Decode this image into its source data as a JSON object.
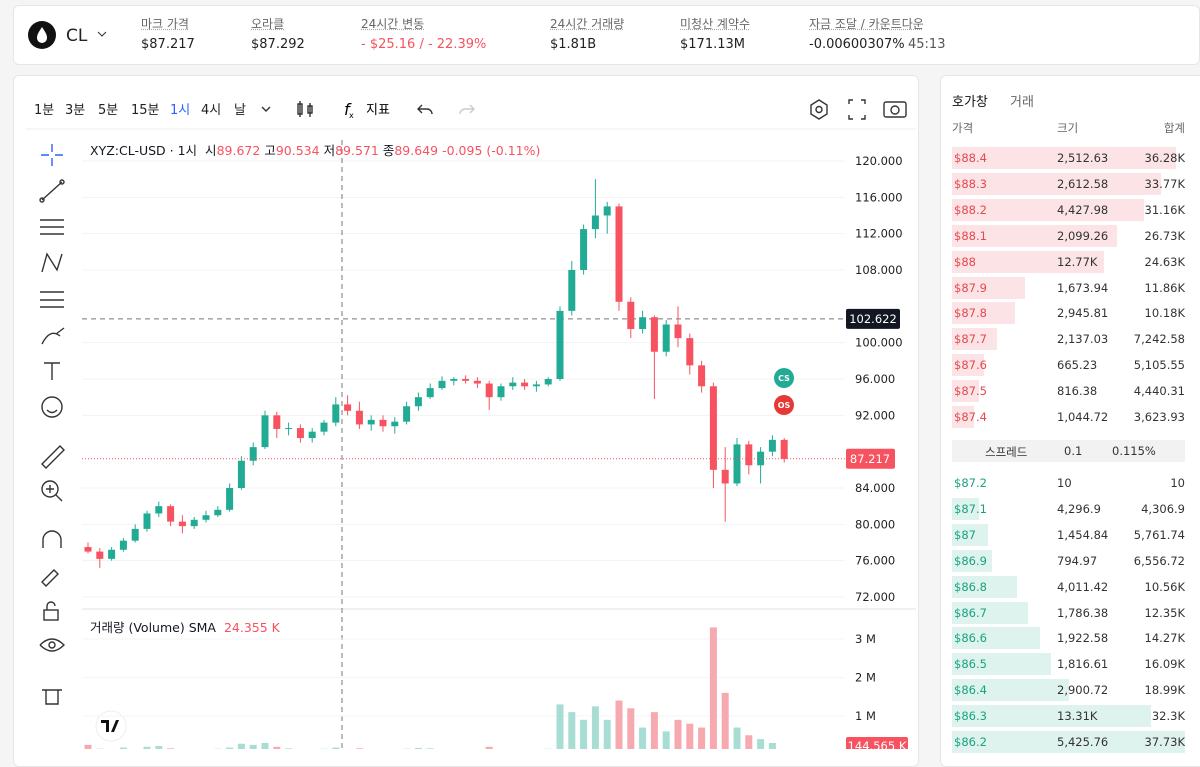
{
  "header": {
    "symbol": "CL",
    "stats": [
      {
        "label": "마크 가격",
        "value": "$87.217"
      },
      {
        "label": "오라클",
        "value": "$87.292"
      },
      {
        "label": "24시간 변동",
        "value": "- $25.16 / - 22.39%"
      },
      {
        "label": "24시간 거래량",
        "value": "$1.81B"
      },
      {
        "label": "미청산 계약수",
        "value": "$171.13M"
      },
      {
        "label": "자금 조달 / 카운트다운",
        "value": "-0.00600307%",
        "extra": "45:13"
      }
    ]
  },
  "toolbar": {
    "intervals": [
      "1분",
      "3분",
      "5분",
      "15분",
      "1시",
      "4시",
      "날"
    ],
    "active_interval": 4,
    "indicators": "지표"
  },
  "chart_data": {
    "type": "candlestick",
    "symbol": "XYZ:CL-USD · 1시",
    "legend": [
      {
        "label": "시",
        "value": "89.672"
      },
      {
        "label": "고",
        "value": "90.534"
      },
      {
        "label": "저",
        "value": "89.571"
      },
      {
        "label": "종",
        "value": "89.649"
      }
    ],
    "change": "-0.095 (-0.11%)",
    "open": [
      77.5,
      77.0,
      76.2,
      77.2,
      78.2,
      79.5,
      81.2,
      82.0,
      80.3,
      79.8,
      80.5,
      81.0,
      81.6,
      84.0,
      87.0,
      88.5,
      92.0,
      90.5,
      90.6,
      89.5,
      90.2,
      91.2,
      93.2,
      92.5,
      91.0,
      91.5,
      90.8,
      91.3,
      93.0,
      94.0,
      95.0,
      95.8,
      96.0,
      95.8,
      95.5,
      94.0,
      95.2,
      95.6,
      95.2,
      95.4,
      96.0,
      103.5,
      108.0,
      112.5,
      114.0,
      115.0,
      104.5,
      101.5,
      102.8,
      99.0,
      102.0,
      100.5,
      97.5,
      95.2,
      86.0,
      84.5,
      88.8,
      86.5,
      88.0,
      89.3
    ],
    "high": [
      78,
      77.4,
      77.5,
      78.5,
      80,
      81.5,
      82.5,
      82.2,
      81,
      80.8,
      81.5,
      82,
      84.5,
      87.5,
      89,
      92.5,
      92.4,
      91.2,
      91,
      90.6,
      91.5,
      94,
      94.2,
      93.5,
      92,
      92,
      91.8,
      93.5,
      94.5,
      95.5,
      96.3,
      96.2,
      96.4,
      96.2,
      95.8,
      95.5,
      96.2,
      96,
      95.8,
      96.2,
      104,
      109,
      113,
      118,
      115.5,
      115.3,
      105,
      103.5,
      103,
      102.5,
      104,
      101,
      98,
      95.6,
      88.5,
      89.5,
      89.2,
      88.5,
      89.8,
      89.5
    ],
    "low": [
      76.8,
      75.2,
      76,
      77,
      78,
      79.2,
      80.8,
      79.8,
      79,
      79.5,
      80.2,
      80.8,
      81.4,
      83.8,
      86.5,
      88.3,
      89.5,
      89.8,
      89,
      89,
      89.8,
      90.8,
      92,
      90.5,
      90.3,
      90.2,
      90,
      91,
      92.5,
      93.8,
      94.8,
      95.3,
      95.5,
      95,
      92.6,
      93.6,
      94.8,
      94.8,
      94.6,
      95.2,
      95.8,
      103,
      107.5,
      111.5,
      112,
      103.5,
      100.5,
      101,
      93.8,
      98.5,
      99.5,
      96.5,
      94.5,
      84,
      80.3,
      84.2,
      85.5,
      84.5,
      87.5,
      86.8
    ],
    "close": [
      77.0,
      76.2,
      77.2,
      78.2,
      79.5,
      81.2,
      82.0,
      80.3,
      79.8,
      80.5,
      81.0,
      81.6,
      84.0,
      87.0,
      88.5,
      92.0,
      90.5,
      90.6,
      89.5,
      90.2,
      91.2,
      93.2,
      92.5,
      91.0,
      91.5,
      90.8,
      91.3,
      93.0,
      94.0,
      95.0,
      95.8,
      96.0,
      95.8,
      95.5,
      94.0,
      95.2,
      95.6,
      95.2,
      95.4,
      96.0,
      103.5,
      108.0,
      112.5,
      114.0,
      115.0,
      104.5,
      101.5,
      102.8,
      99.0,
      102.0,
      100.5,
      97.5,
      95.2,
      86.0,
      84.5,
      88.8,
      86.5,
      88.0,
      89.3,
      87.2
    ],
    "ylim": [
      70.79,
      122.31
    ],
    "yticks": [
      {
        "value": 72,
        "label": "72.000"
      },
      {
        "value": 76,
        "label": "76.000"
      },
      {
        "value": 80,
        "label": "80.000"
      },
      {
        "value": 84,
        "label": "84.000"
      },
      {
        "value": 92,
        "label": "92.000"
      },
      {
        "value": 96,
        "label": "96.000"
      },
      {
        "value": 100,
        "label": "100.000"
      },
      {
        "value": 108,
        "label": "108.000"
      },
      {
        "value": 112,
        "label": "112.000"
      },
      {
        "value": 116,
        "label": "116.000"
      },
      {
        "value": 120,
        "label": "120.000"
      }
    ],
    "last_price": {
      "value": 87.217,
      "label": "87.217"
    },
    "crosshair_price": {
      "value": 102.622,
      "label": "102.622"
    },
    "markers": [
      "CS",
      "OS"
    ],
    "up_color": "#22ab94",
    "down_color": "#f7525f"
  },
  "volume": {
    "title": "거래량 (Volume) SMA",
    "sma": "24.355 K",
    "values": [
      250000,
      150000,
      120000,
      180000,
      140000,
      200000,
      220000,
      160000,
      130000,
      100000,
      120000,
      150000,
      180000,
      280000,
      250000,
      300000,
      200000,
      160000,
      140000,
      120000,
      150000,
      180000,
      130000,
      160000,
      110000,
      120000,
      100000,
      150000,
      170000,
      160000,
      120000,
      100000,
      90000,
      110000,
      200000,
      120000,
      100000,
      90000,
      100000,
      150000,
      1300000,
      1100000,
      900000,
      1250000,
      900000,
      1400000,
      1200000,
      700000,
      1100000,
      600000,
      900000,
      800000,
      700000,
      3300000,
      1600000,
      700000,
      500000,
      400000,
      300000,
      144565
    ],
    "ylim": [
      0,
      3700000
    ],
    "yticks": [
      {
        "value": 1000000,
        "label": "1 M"
      },
      {
        "value": 2000000,
        "label": "2 M"
      },
      {
        "value": 3000000,
        "label": "3 M"
      }
    ],
    "last": {
      "value": 144565,
      "label": "144.565 K"
    }
  },
  "order_book": {
    "tabs": [
      "호가창",
      "거래"
    ],
    "columns": [
      "가격",
      "크기",
      "합계"
    ],
    "asks": [
      {
        "price": "$88.4",
        "size": "2,512.63",
        "total": "36.28K",
        "depth": 36280
      },
      {
        "price": "$88.3",
        "size": "2,612.58",
        "total": "33.77K",
        "depth": 33770
      },
      {
        "price": "$88.2",
        "size": "4,427.98",
        "total": "31.16K",
        "depth": 31160
      },
      {
        "price": "$88.1",
        "size": "2,099.26",
        "total": "26.73K",
        "depth": 26730
      },
      {
        "price": "$88",
        "size": "12.77K",
        "total": "24.63K",
        "depth": 24630
      },
      {
        "price": "$87.9",
        "size": "1,673.94",
        "total": "11.86K",
        "depth": 11860
      },
      {
        "price": "$87.8",
        "size": "2,945.81",
        "total": "10.18K",
        "depth": 10180
      },
      {
        "price": "$87.7",
        "size": "2,137.03",
        "total": "7,242.58",
        "depth": 7242.58
      },
      {
        "price": "$87.6",
        "size": "665.23",
        "total": "5,105.55",
        "depth": 5105.55
      },
      {
        "price": "$87.5",
        "size": "816.38",
        "total": "4,440.31",
        "depth": 4440.31
      },
      {
        "price": "$87.4",
        "size": "1,044.72",
        "total": "3,623.93",
        "depth": 3623.93
      }
    ],
    "spread": {
      "label": "스프레드",
      "value": "0.1",
      "percent": "0.115%"
    },
    "bids": [
      {
        "price": "$87.2",
        "size": "10",
        "total": "10",
        "depth": 10
      },
      {
        "price": "$87.1",
        "size": "4,296.9",
        "total": "4,306.9",
        "depth": 4306.9
      },
      {
        "price": "$87",
        "size": "1,454.84",
        "total": "5,761.74",
        "depth": 5761.74
      },
      {
        "price": "$86.9",
        "size": "794.97",
        "total": "6,556.72",
        "depth": 6556.72
      },
      {
        "price": "$86.8",
        "size": "4,011.42",
        "total": "10.56K",
        "depth": 10560
      },
      {
        "price": "$86.7",
        "size": "1,786.38",
        "total": "12.35K",
        "depth": 12350
      },
      {
        "price": "$86.6",
        "size": "1,922.58",
        "total": "14.27K",
        "depth": 14270
      },
      {
        "price": "$86.5",
        "size": "1,816.61",
        "total": "16.09K",
        "depth": 16090
      },
      {
        "price": "$86.4",
        "size": "2,900.72",
        "total": "18.99K",
        "depth": 18990
      },
      {
        "price": "$86.3",
        "size": "13.31K",
        "total": "32.3K",
        "depth": 32300
      },
      {
        "price": "$86.2",
        "size": "5,425.76",
        "total": "37.73K",
        "depth": 37730
      }
    ]
  }
}
